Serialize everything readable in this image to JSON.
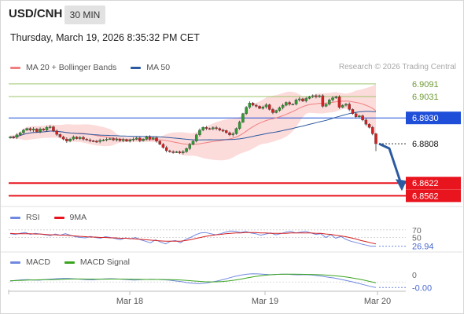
{
  "header": {
    "symbol": "USD/CNH",
    "timeframe": "30 MIN",
    "datetime": "Thursday, March 19, 2026 8:35:32 PM CET"
  },
  "legend_main": [
    {
      "label": "MA 20 + Bollinger Bands",
      "color": "#f08080"
    },
    {
      "label": "MA 50",
      "color": "#2c5aa0"
    }
  ],
  "research_note": "Research © 2026 Trading Central",
  "colors": {
    "resistance": "#9dc46a",
    "pivot": "#1f4fd8",
    "support": "#e8141e",
    "last": "#333333",
    "candle_up": "#2e9c31",
    "candle_down": "#d42020",
    "band_fill": "#fbd2d2",
    "ma20": "#f08080",
    "ma50": "#2c5aa0",
    "arrow": "#2c5aa0",
    "rsi": "#6f88e0",
    "rsi_ma": "#d42020",
    "macd": "#6f88e0",
    "macd_signal": "#3aa51e"
  },
  "chart_data": [
    {
      "type": "candlestick",
      "title": "USD/CNH",
      "ylim": [
        6.853,
        6.912
      ],
      "levels": [
        {
          "value": 6.9091,
          "label": "6.9091",
          "kind": "resistance"
        },
        {
          "value": 6.9031,
          "label": "6.9031",
          "kind": "resistance"
        },
        {
          "value": 6.893,
          "label": "6.8930",
          "kind": "pivot"
        },
        {
          "value": 6.8808,
          "label": "6.8808",
          "kind": "last"
        },
        {
          "value": 6.8622,
          "label": "6.8622",
          "kind": "support"
        },
        {
          "value": 6.8562,
          "label": "6.8562",
          "kind": "support"
        }
      ],
      "arrow": {
        "from": 6.8808,
        "to": 6.8622
      },
      "close": [
        6.884,
        6.8838,
        6.885,
        6.886,
        6.8872,
        6.888,
        6.8872,
        6.8878,
        6.8865,
        6.8878,
        6.8872,
        6.8886,
        6.8888,
        6.8868,
        6.8852,
        6.884,
        6.883,
        6.882,
        6.883,
        6.884,
        6.8832,
        6.8838,
        6.883,
        6.8826,
        6.8822,
        6.882,
        6.8818,
        6.8824,
        6.8826,
        6.883,
        6.8832,
        6.8826,
        6.883,
        6.8822,
        6.8828,
        6.882,
        6.8826,
        6.883,
        6.8835,
        6.8822,
        6.883,
        6.884,
        6.883,
        6.8836,
        6.882,
        6.8805,
        6.879,
        6.8775,
        6.877,
        6.8768,
        6.877,
        6.8765,
        6.877,
        6.8785,
        6.8805,
        6.882,
        6.885,
        6.8872,
        6.8885,
        6.888,
        6.8878,
        6.8884,
        6.888,
        6.8872,
        6.887,
        6.886,
        6.885,
        6.8855,
        6.888,
        6.891,
        6.895,
        6.898,
        6.9,
        6.899,
        6.8985,
        6.8975,
        6.8982,
        6.8992,
        6.897,
        6.8955,
        6.8965,
        6.8978,
        6.899,
        6.9003,
        6.8995,
        6.8995,
        6.9015,
        6.902,
        6.901,
        6.9022,
        6.903,
        6.9035,
        6.903,
        6.9035,
        6.8985,
        6.8995,
        6.9015,
        6.9025,
        6.903,
        6.898,
        6.899,
        6.8995,
        6.897,
        6.895,
        6.8935,
        6.894,
        6.892,
        6.89,
        6.8885,
        6.8855,
        6.8808
      ]
    },
    {
      "type": "line",
      "title": "RSI",
      "levels": [
        {
          "value": 70,
          "label": "70"
        },
        {
          "value": 50,
          "label": "50"
        }
      ],
      "last_value_label": "26.94",
      "series": [
        {
          "name": "RSI",
          "values": [
            60,
            58,
            61,
            63,
            58,
            61,
            59,
            57,
            55,
            59,
            56,
            60,
            56,
            52,
            50,
            49,
            53,
            50,
            48,
            52,
            50,
            47,
            44,
            49,
            46,
            50,
            44,
            40,
            36,
            44,
            38,
            33,
            40,
            42,
            36,
            45,
            50,
            57,
            62,
            63,
            60,
            57,
            60,
            64,
            67,
            66,
            63,
            66,
            62,
            60,
            56,
            59,
            62,
            57,
            60,
            64,
            66,
            62,
            64,
            66,
            62,
            58,
            60,
            50,
            57,
            48,
            53,
            45,
            40,
            37,
            33,
            30,
            27,
            27
          ]
        },
        {
          "name": "9MA",
          "values": [
            61,
            60,
            60,
            60,
            60,
            59,
            59,
            58,
            57,
            57,
            56,
            56,
            55,
            54,
            53,
            52,
            51,
            51,
            50,
            50,
            49,
            49,
            48,
            48,
            47,
            46,
            45,
            44,
            43,
            42,
            41,
            40,
            40,
            40,
            40,
            42,
            44,
            47,
            50,
            53,
            55,
            57,
            58,
            60,
            61,
            62,
            62,
            63,
            63,
            63,
            62,
            62,
            61,
            61,
            61,
            61,
            62,
            62,
            62,
            62,
            62,
            61,
            61,
            59,
            58,
            56,
            54,
            52,
            49,
            46,
            42,
            39,
            36,
            33
          ]
        }
      ]
    },
    {
      "type": "line",
      "title": "MACD",
      "levels": [
        {
          "value": 0,
          "label": "0"
        }
      ],
      "last_value_label": "-0.00",
      "series": [
        {
          "name": "MACD",
          "values": [
            0.1,
            0.18,
            0.24,
            0.26,
            0.22,
            0.2,
            0.28,
            0.32,
            0.36,
            0.4,
            0.38,
            0.34,
            0.3,
            0.26,
            0.24,
            0.3,
            0.34,
            0.36,
            0.34,
            0.3,
            0.26,
            0.22,
            0.24,
            0.28,
            0.3,
            0.28,
            0.24,
            0.2,
            0.12,
            0.04,
            -0.06,
            -0.14,
            -0.18,
            -0.12,
            -0.02,
            0.1,
            0.24,
            0.42,
            0.6,
            0.74,
            0.84,
            0.9,
            0.88,
            0.84,
            0.8,
            0.82,
            0.86,
            0.84,
            0.8,
            0.78,
            0.8,
            0.76,
            0.7,
            0.62,
            0.52,
            0.42,
            0.3,
            0.16,
            0.02,
            -0.14,
            -0.3,
            -0.46,
            -0.6
          ]
        },
        {
          "name": "MACD Signal",
          "values": [
            0.14,
            0.16,
            0.18,
            0.21,
            0.23,
            0.24,
            0.25,
            0.26,
            0.28,
            0.3,
            0.32,
            0.33,
            0.33,
            0.32,
            0.32,
            0.31,
            0.31,
            0.32,
            0.32,
            0.32,
            0.31,
            0.3,
            0.29,
            0.28,
            0.28,
            0.28,
            0.27,
            0.26,
            0.24,
            0.21,
            0.17,
            0.12,
            0.07,
            0.03,
            0.01,
            0.02,
            0.06,
            0.12,
            0.2,
            0.3,
            0.42,
            0.54,
            0.64,
            0.72,
            0.78,
            0.82,
            0.84,
            0.85,
            0.85,
            0.84,
            0.83,
            0.82,
            0.8,
            0.78,
            0.74,
            0.69,
            0.62,
            0.54,
            0.44,
            0.33,
            0.2,
            0.06,
            -0.08
          ]
        }
      ]
    }
  ],
  "legend_rsi": [
    {
      "label": "RSI",
      "color": "#6f88e0"
    },
    {
      "label": "9MA",
      "color": "#e8141e"
    }
  ],
  "legend_macd": [
    {
      "label": "MACD",
      "color": "#6f88e0"
    },
    {
      "label": "MACD Signal",
      "color": "#3aa51e"
    }
  ],
  "x_axis": {
    "tick_labels": [
      "Mar 18",
      "Mar 19",
      "Mar 20"
    ]
  }
}
